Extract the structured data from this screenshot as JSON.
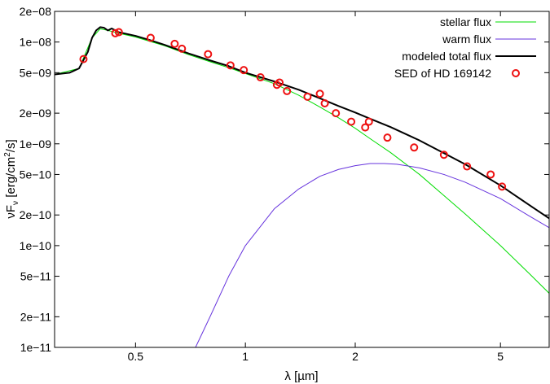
{
  "chart_data": {
    "type": "line",
    "xlabel": "λ [µm]",
    "ylabel": "νF",
    "ylabel_sub": "ν",
    "ylabel_unit_pre": " [erg/cm",
    "ylabel_unit_sup": "2",
    "ylabel_unit_post": "/s]",
    "xscale": "log",
    "yscale": "log",
    "xlim": [
      0.3,
      6.8
    ],
    "ylim": [
      1e-11,
      2e-08
    ],
    "grid": false,
    "legend_position": "top-right",
    "x_ticks": [
      {
        "value": 0.5,
        "label": "0.5"
      },
      {
        "value": 1,
        "label": "1"
      },
      {
        "value": 2,
        "label": "2"
      },
      {
        "value": 5,
        "label": "5"
      }
    ],
    "y_ticks": [
      {
        "value": 1e-11,
        "label": "1e−11"
      },
      {
        "value": 2e-11,
        "label": "2e−11"
      },
      {
        "value": 5e-11,
        "label": "5e−11"
      },
      {
        "value": 1e-10,
        "label": "1e−10"
      },
      {
        "value": 2e-10,
        "label": "2e−10"
      },
      {
        "value": 5e-10,
        "label": "5e−10"
      },
      {
        "value": 1e-09,
        "label": "1e−09"
      },
      {
        "value": 2e-09,
        "label": "2e−09"
      },
      {
        "value": 5e-09,
        "label": "5e−09"
      },
      {
        "value": 1e-08,
        "label": "1e−08"
      },
      {
        "value": 2e-08,
        "label": "2e−08"
      }
    ],
    "series": [
      {
        "name": "stellar flux",
        "style": "line",
        "color": "#00dd00",
        "x": [
          0.3,
          0.35,
          0.38,
          0.4,
          0.42,
          0.45,
          0.5,
          0.55,
          0.6,
          0.7,
          0.8,
          0.9,
          1.0,
          1.2,
          1.4,
          1.6,
          1.8,
          2.0,
          2.2,
          2.5,
          3.0,
          3.5,
          4.0,
          5.0,
          6.0,
          6.8
        ],
        "y": [
          4.8e-09,
          5.5e-09,
          1.1e-08,
          1.35e-08,
          1.3e-08,
          1.22e-08,
          1.12e-08,
          1.01e-08,
          9.2e-09,
          7.5e-09,
          6.4e-09,
          5.6e-09,
          4.9e-09,
          3.9e-09,
          3e-09,
          2.3e-09,
          1.8e-09,
          1.42e-09,
          1.12e-09,
          8.2e-10,
          5e-10,
          3.1e-10,
          2.05e-10,
          1e-10,
          5.3e-11,
          3.4e-11
        ]
      },
      {
        "name": "warm flux",
        "style": "line",
        "color": "#6633dd",
        "x": [
          0.73,
          0.8,
          0.9,
          1.0,
          1.2,
          1.4,
          1.6,
          1.8,
          2.0,
          2.2,
          2.4,
          2.6,
          3.0,
          3.5,
          4.0,
          5.0,
          6.0,
          6.8
        ],
        "y": [
          1e-11,
          2e-11,
          5e-11,
          1e-10,
          2.3e-10,
          3.6e-10,
          4.8e-10,
          5.6e-10,
          6.1e-10,
          6.4e-10,
          6.4e-10,
          6.3e-10,
          5.8e-10,
          5e-10,
          4.2e-10,
          2.9e-10,
          1.95e-10,
          1.5e-10
        ]
      },
      {
        "name": "modeled total flux",
        "style": "line",
        "color": "#000000",
        "x": [
          0.3,
          0.33,
          0.35,
          0.37,
          0.38,
          0.39,
          0.4,
          0.41,
          0.42,
          0.43,
          0.45,
          0.5,
          0.55,
          0.6,
          0.7,
          0.8,
          0.9,
          1.0,
          1.2,
          1.4,
          1.6,
          1.8,
          2.0,
          2.2,
          2.5,
          3.0,
          3.5,
          4.0,
          5.0,
          6.0,
          6.8
        ],
        "y": [
          4.8e-09,
          5e-09,
          5.5e-09,
          8e-09,
          1.1e-08,
          1.3e-08,
          1.4e-08,
          1.38e-08,
          1.3e-08,
          1.36e-08,
          1.25e-08,
          1.15e-08,
          1.04e-08,
          9.4e-09,
          7.7e-09,
          6.6e-09,
          5.8e-09,
          5e-09,
          4.1e-09,
          3.4e-09,
          2.8e-09,
          2.35e-09,
          2.03e-09,
          1.76e-09,
          1.46e-09,
          1.08e-09,
          8.1e-10,
          6.3e-10,
          3.9e-10,
          2.5e-10,
          1.85e-10
        ]
      },
      {
        "name": "SED of HD 169142",
        "style": "markers",
        "color": "#ee1111",
        "x": [
          0.36,
          0.44,
          0.45,
          0.55,
          0.64,
          0.67,
          0.79,
          0.91,
          0.99,
          1.1,
          1.22,
          1.24,
          1.3,
          1.48,
          1.6,
          1.65,
          1.77,
          1.95,
          2.13,
          2.18,
          2.45,
          2.9,
          3.5,
          4.05,
          4.7,
          5.05
        ],
        "y": [
          6.8e-09,
          1.22e-08,
          1.25e-08,
          1.1e-08,
          9.6e-09,
          8.6e-09,
          7.6e-09,
          5.9e-09,
          5.3e-09,
          4.5e-09,
          3.8e-09,
          4e-09,
          3.3e-09,
          2.9e-09,
          3.1e-09,
          2.5e-09,
          2e-09,
          1.65e-09,
          1.45e-09,
          1.65e-09,
          1.15e-09,
          9.2e-10,
          7.8e-10,
          6e-10,
          5e-10,
          3.8e-10
        ]
      }
    ]
  }
}
